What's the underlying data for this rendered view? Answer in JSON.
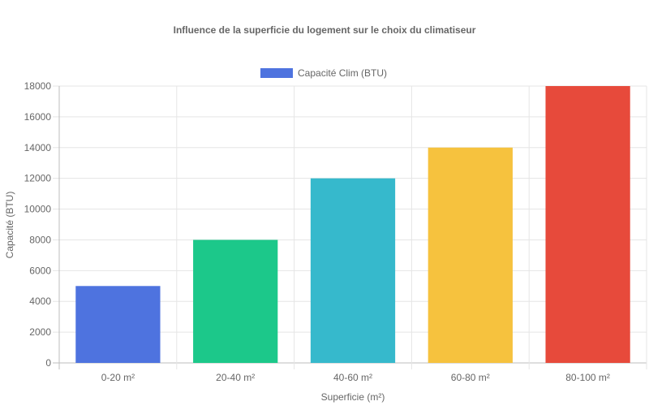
{
  "chart_data": {
    "type": "bar",
    "title": "Influence de la superficie du logement sur le choix du climatiseur",
    "xlabel": "Superficie (m²)",
    "ylabel": "Capacité (BTU)",
    "categories": [
      "0-20 m²",
      "20-40 m²",
      "40-60 m²",
      "60-80 m²",
      "80-100 m²"
    ],
    "series": [
      {
        "name": "Capacité Clim (BTU)",
        "values": [
          5000,
          8000,
          12000,
          14000,
          18000
        ],
        "colors": [
          "#4e73df",
          "#1cc88a",
          "#36b9cc",
          "#f6c23e",
          "#e74a3b"
        ]
      }
    ],
    "ylim": [
      0,
      18000
    ],
    "yticks": [
      0,
      2000,
      4000,
      6000,
      8000,
      10000,
      12000,
      14000,
      16000,
      18000
    ],
    "grid": true,
    "legend_position": "top"
  }
}
